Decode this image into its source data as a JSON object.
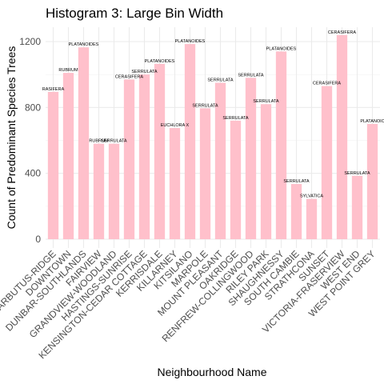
{
  "chart_data": {
    "type": "bar",
    "title": "Histogram 3: Large Bin Width",
    "xlabel": "Neighbourhood Name",
    "ylabel": "Count of Predominant Species Trees",
    "ylim": [
      0,
      1280
    ],
    "yticks": [
      0,
      400,
      800,
      1200
    ],
    "bar_color": "#ffc0cb",
    "grid": true,
    "categories": [
      "ARBUTUS-RIDGE",
      "DOWNTOWN",
      "DUNBAR-SOUTHLANDS",
      "FAIRVIEW",
      "GRANDVIEW-WOODLAND",
      "HASTINGS-SUNRISE",
      "KENSINGTON-CEDAR COTTAGE",
      "KERRISDALE",
      "KILLARNEY",
      "KITSILANO",
      "MARPOLE",
      "MOUNT PLEASANT",
      "OAKRIDGE",
      "RENFREW-COLLINGWOOD",
      "RILEY PARK",
      "SHAUGHNESSY",
      "SOUTH CAMBIE",
      "STRATHCONA",
      "SUNSET",
      "VICTORIA-FRASERVIEW",
      "WEST END",
      "WEST POINT GREY"
    ],
    "values": [
      895,
      1010,
      1165,
      580,
      580,
      970,
      1000,
      1065,
      675,
      1185,
      795,
      950,
      720,
      980,
      820,
      1140,
      335,
      245,
      930,
      1240,
      385,
      700
    ],
    "bar_labels": [
      "RASIFERA",
      "RUBRUM",
      "PLATANOIDES",
      "RUBRUM",
      "SERRULATA",
      "CERASIFERA",
      "SERRULATA",
      "PLATANOIDES",
      "EUCHLORA   X",
      "PLATANOIDES",
      "SERRULATA",
      "SERRULATA",
      "SERRULATA",
      "SERRULATA",
      "SERRULATA",
      "PLATANOIDES",
      "SERRULATA",
      "SYLVATICA",
      "CERASIFERA",
      "CERASIFERA",
      "SERRULATA",
      "PLATANOIC"
    ]
  }
}
